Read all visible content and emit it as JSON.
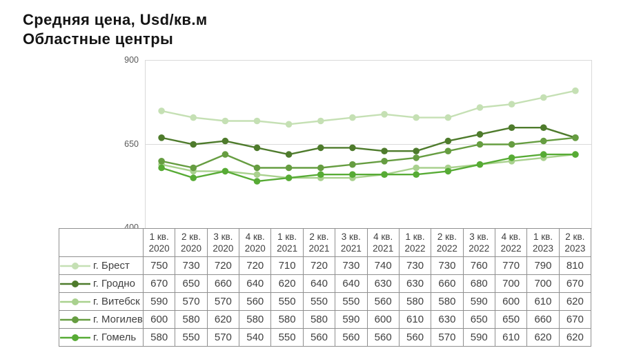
{
  "title": {
    "line1": "Средняя цена, Usd/кв.м",
    "line2": "Областные центры"
  },
  "colors": {
    "grid": "#d9d9d9",
    "plot_border": "#d9d9d9",
    "table_border": "#8f8f8f",
    "table_text": "#404040",
    "axis_text": "#595959",
    "title_text": "#141414"
  },
  "chart_data": {
    "type": "line",
    "title": "Средняя цена, Usd/кв.м",
    "subtitle": "Областные центры",
    "xlabel": "",
    "ylabel": "",
    "ylim": [
      400,
      900
    ],
    "y_ticks": [
      900,
      650,
      400
    ],
    "gridlines": [
      650
    ],
    "grid": "horizontal only, light gray, at 650; plot framed by light gray border",
    "legend_position": "left column of data table below chart",
    "marker": "circle",
    "categories": [
      "1 кв. 2020",
      "2 кв. 2020",
      "3 кв. 2020",
      "4 кв. 2020",
      "1 кв. 2021",
      "2 кв. 2021",
      "3 кв. 2021",
      "4 кв. 2021",
      "1 кв. 2022",
      "2 кв. 2022",
      "3 кв. 2022",
      "4 кв. 2022",
      "1 кв. 2023",
      "2 кв. 2023"
    ],
    "series": [
      {
        "name": "г. Брест",
        "color": "#c5e0b4",
        "values": [
          750,
          730,
          720,
          720,
          710,
          720,
          730,
          740,
          730,
          730,
          760,
          770,
          790,
          810
        ]
      },
      {
        "name": "г. Гродно",
        "color": "#4e7b2c",
        "values": [
          670,
          650,
          660,
          640,
          620,
          640,
          640,
          630,
          630,
          660,
          680,
          700,
          700,
          670
        ]
      },
      {
        "name": "г. Витебск",
        "color": "#a9d18e",
        "values": [
          590,
          570,
          570,
          560,
          550,
          550,
          550,
          560,
          580,
          580,
          590,
          600,
          610,
          620
        ]
      },
      {
        "name": "г. Могилев",
        "color": "#669d41",
        "values": [
          600,
          580,
          620,
          580,
          580,
          580,
          590,
          600,
          610,
          630,
          650,
          650,
          660,
          670
        ]
      },
      {
        "name": "г. Гомель",
        "color": "#57ab35",
        "values": [
          580,
          550,
          570,
          540,
          550,
          560,
          560,
          560,
          560,
          570,
          590,
          610,
          620,
          620
        ]
      }
    ]
  }
}
